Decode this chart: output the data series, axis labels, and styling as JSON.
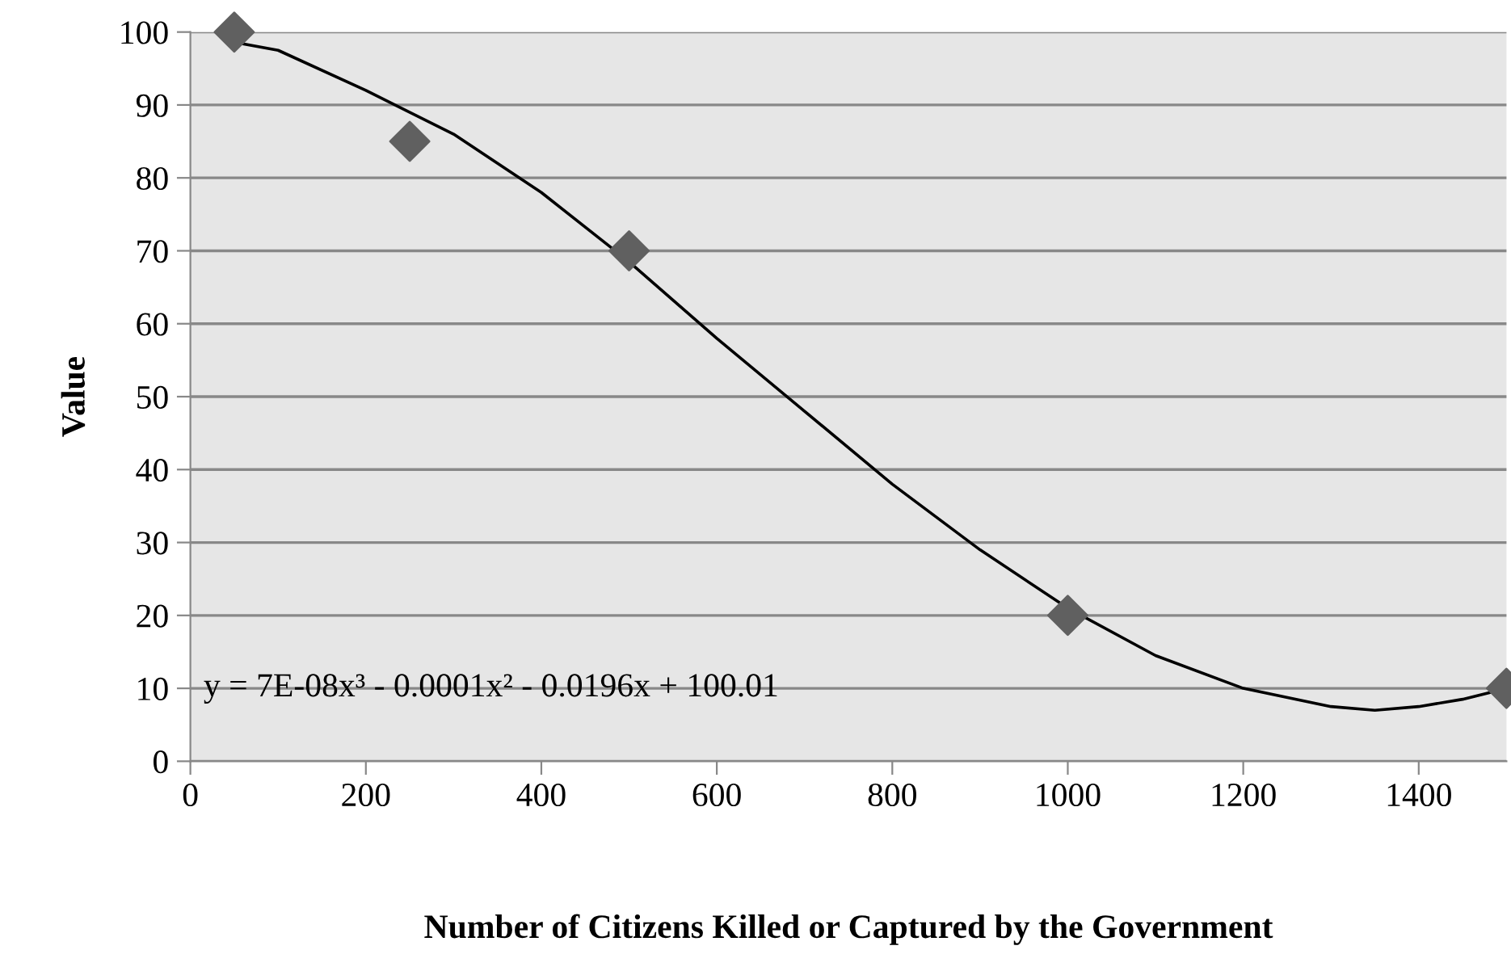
{
  "chart_data": {
    "type": "scatter",
    "xlabel": "Number of Citizens Killed or Captured by the Government",
    "ylabel": "Value",
    "xlim": [
      0,
      1500
    ],
    "ylim": [
      0,
      100
    ],
    "xticks": [
      0,
      200,
      400,
      600,
      800,
      1000,
      1200,
      1400
    ],
    "yticks": [
      0,
      10,
      20,
      30,
      40,
      50,
      60,
      70,
      80,
      90,
      100
    ],
    "grid": "y",
    "series": [
      {
        "color": "#606060",
        "marker": "diamond",
        "x": [
          50,
          250,
          500,
          1000,
          1500
        ],
        "values": [
          100,
          85,
          70,
          20,
          10
        ]
      },
      {
        "type": "line",
        "color": "#000000",
        "marker": "none",
        "line_style": "solid",
        "x": [
          50,
          100,
          200,
          300,
          400,
          500,
          600,
          700,
          800,
          900,
          1000,
          1100,
          1200,
          1300,
          1350,
          1400,
          1450,
          1500
        ],
        "values": [
          98.6,
          97.5,
          92,
          86,
          78,
          68.5,
          58,
          48,
          38,
          29,
          21,
          14.5,
          10,
          7.5,
          7,
          7.5,
          8.5,
          10
        ]
      }
    ],
    "annotations": [
      "y = 7E-08x³ - 0.0001x² - 0.0196x + 100.01"
    ]
  }
}
